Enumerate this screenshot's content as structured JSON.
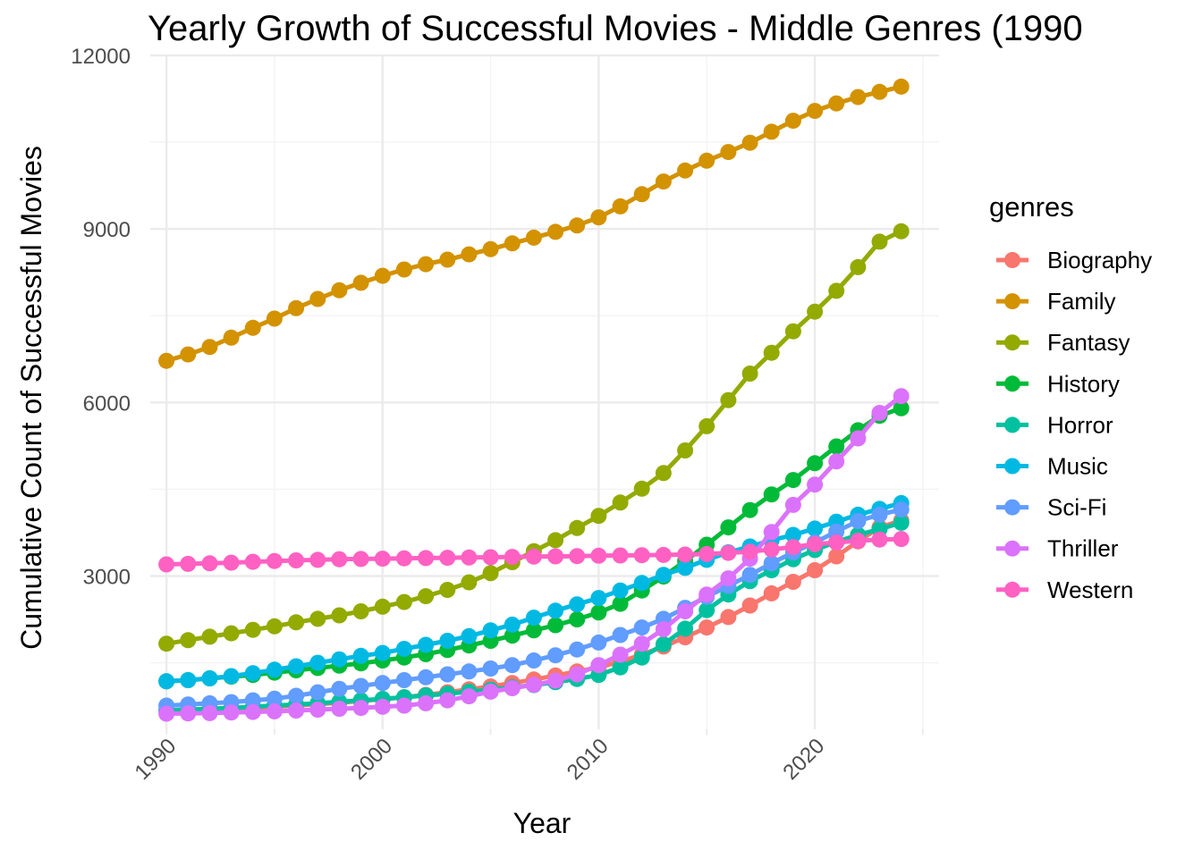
{
  "chart_data": {
    "type": "line",
    "title": "Yearly Growth of Successful Movies - Middle Genres (1990",
    "xlabel": "Year",
    "ylabel": "Cumulative Count of Successful Movies",
    "xlim": [
      1989.25,
      2025.75
    ],
    "ylim": [
      350,
      12000
    ],
    "x_ticks": [
      1990,
      2000,
      2010,
      2020
    ],
    "y_ticks": [
      3000,
      6000,
      9000,
      12000
    ],
    "grid": true,
    "legend_title": "genres",
    "legend_position": "right",
    "x": [
      1990,
      1991,
      1992,
      1993,
      1994,
      1995,
      1996,
      1997,
      1998,
      1999,
      2000,
      2001,
      2002,
      2003,
      2004,
      2005,
      2006,
      2007,
      2008,
      2009,
      2010,
      2011,
      2012,
      2013,
      2014,
      2015,
      2016,
      2017,
      2018,
      2019,
      2020,
      2021,
      2022,
      2023,
      2024
    ],
    "series": [
      {
        "name": "Biography",
        "color": "#F8766D",
        "values": [
          660,
          675,
          690,
          705,
          720,
          740,
          760,
          785,
          810,
          840,
          870,
          905,
          945,
          990,
          1040,
          1090,
          1150,
          1210,
          1280,
          1350,
          1420,
          1520,
          1640,
          1780,
          1940,
          2110,
          2290,
          2490,
          2700,
          2900,
          3100,
          3340,
          3600,
          3840,
          3960
        ]
      },
      {
        "name": "Family",
        "color": "#D39200",
        "values": [
          6720,
          6830,
          6960,
          7120,
          7290,
          7450,
          7630,
          7790,
          7940,
          8070,
          8190,
          8300,
          8390,
          8470,
          8560,
          8650,
          8750,
          8850,
          8950,
          9060,
          9200,
          9390,
          9600,
          9820,
          10010,
          10180,
          10330,
          10490,
          10680,
          10870,
          11040,
          11170,
          11280,
          11370,
          11460
        ]
      },
      {
        "name": "Fantasy",
        "color": "#93AA00",
        "values": [
          1830,
          1890,
          1950,
          2010,
          2070,
          2130,
          2200,
          2260,
          2320,
          2390,
          2470,
          2550,
          2650,
          2760,
          2890,
          3050,
          3240,
          3430,
          3620,
          3830,
          4040,
          4270,
          4510,
          4780,
          5170,
          5590,
          6040,
          6500,
          6860,
          7230,
          7570,
          7930,
          8340,
          8780,
          8960
        ]
      },
      {
        "name": "History",
        "color": "#00BA38",
        "values": [
          1180,
          1200,
          1230,
          1260,
          1290,
          1330,
          1370,
          1410,
          1450,
          1490,
          1540,
          1590,
          1650,
          1720,
          1800,
          1880,
          1970,
          2060,
          2150,
          2250,
          2370,
          2520,
          2750,
          2990,
          3260,
          3540,
          3840,
          4140,
          4410,
          4660,
          4950,
          5240,
          5520,
          5770,
          5900
        ]
      },
      {
        "name": "Horror",
        "color": "#00C19F",
        "values": [
          680,
          690,
          705,
          720,
          740,
          760,
          780,
          800,
          825,
          850,
          875,
          905,
          935,
          965,
          1000,
          1035,
          1075,
          1115,
          1165,
          1220,
          1290,
          1420,
          1590,
          1820,
          2090,
          2410,
          2680,
          2910,
          3100,
          3290,
          3450,
          3590,
          3710,
          3810,
          3920
        ]
      },
      {
        "name": "Music",
        "color": "#00B9E3",
        "values": [
          1180,
          1200,
          1230,
          1270,
          1320,
          1380,
          1440,
          1500,
          1560,
          1620,
          1670,
          1740,
          1810,
          1880,
          1960,
          2060,
          2160,
          2280,
          2400,
          2510,
          2620,
          2750,
          2880,
          3020,
          3140,
          3280,
          3410,
          3510,
          3620,
          3710,
          3820,
          3940,
          4060,
          4160,
          4260
        ]
      },
      {
        "name": "Sci-Fi",
        "color": "#619CFF",
        "values": [
          760,
          780,
          800,
          820,
          850,
          880,
          930,
          990,
          1050,
          1100,
          1150,
          1200,
          1250,
          1300,
          1350,
          1400,
          1460,
          1540,
          1630,
          1730,
          1850,
          1980,
          2110,
          2260,
          2450,
          2640,
          2830,
          3020,
          3220,
          3410,
          3580,
          3770,
          3950,
          4060,
          4150
        ]
      },
      {
        "name": "Thriller",
        "color": "#DB72FB",
        "values": [
          620,
          625,
          630,
          640,
          650,
          660,
          675,
          690,
          705,
          720,
          740,
          760,
          800,
          850,
          920,
          1000,
          1060,
          1120,
          1190,
          1300,
          1460,
          1640,
          1830,
          2080,
          2390,
          2680,
          2960,
          3300,
          3760,
          4230,
          4580,
          4980,
          5380,
          5820,
          6110
        ]
      },
      {
        "name": "Western",
        "color": "#FF61C3",
        "values": [
          3200,
          3210,
          3220,
          3230,
          3245,
          3260,
          3270,
          3280,
          3290,
          3295,
          3300,
          3305,
          3310,
          3315,
          3320,
          3325,
          3330,
          3335,
          3340,
          3345,
          3350,
          3355,
          3360,
          3365,
          3370,
          3380,
          3400,
          3420,
          3460,
          3500,
          3550,
          3580,
          3610,
          3630,
          3640
        ]
      }
    ]
  }
}
